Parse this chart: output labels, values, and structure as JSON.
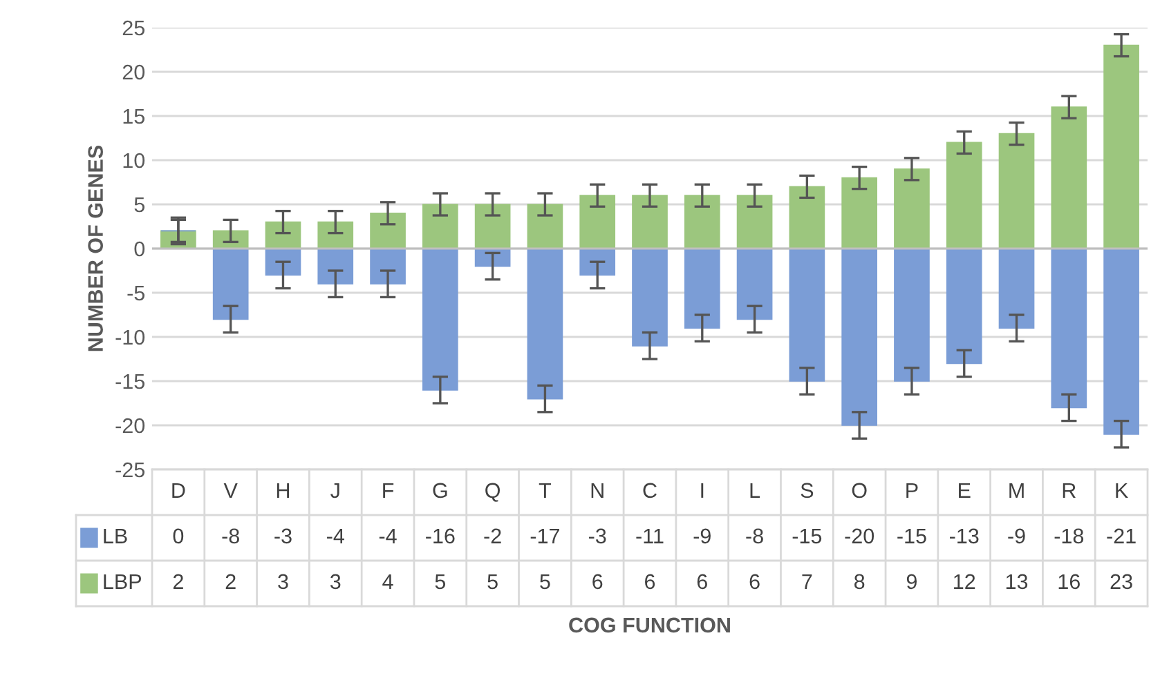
{
  "chart_data": {
    "type": "bar",
    "stacked": true,
    "annotations": [
      "COG FUNCTION"
    ],
    "ylabel": "NUMBER OF GENES",
    "categories": [
      "D",
      "V",
      "H",
      "J",
      "F",
      "G",
      "Q",
      "T",
      "N",
      "C",
      "I",
      "L",
      "S",
      "O",
      "P",
      "E",
      "M",
      "R",
      "K"
    ],
    "series": [
      {
        "name": "LBP",
        "color": "#9cc67e",
        "values": [
          2,
          2,
          3,
          3,
          4,
          5,
          5,
          5,
          6,
          6,
          6,
          6,
          7,
          8,
          9,
          12,
          13,
          16,
          23
        ],
        "errors": [
          1.25,
          1.25,
          1.25,
          1.25,
          1.25,
          1.25,
          1.25,
          1.25,
          1.25,
          1.25,
          1.25,
          1.25,
          1.25,
          1.25,
          1.25,
          1.25,
          1.25,
          1.25,
          1.25
        ]
      },
      {
        "name": "LB",
        "color": "#7b9dd6",
        "values": [
          0,
          -8,
          -3,
          -4,
          -4,
          -16,
          -2,
          -17,
          -3,
          -11,
          -9,
          -8,
          -15,
          -20,
          -15,
          -13,
          -9,
          -18,
          -21
        ],
        "errors": [
          1.5,
          1.5,
          1.5,
          1.5,
          1.5,
          1.5,
          1.5,
          1.5,
          1.5,
          1.5,
          1.5,
          1.5,
          1.5,
          1.5,
          1.5,
          1.5,
          1.5,
          1.5,
          1.5
        ]
      }
    ],
    "ylim": [
      -25,
      25
    ],
    "yticks": [
      -25,
      -20,
      -15,
      -10,
      -5,
      0,
      5,
      10,
      15,
      20,
      25
    ],
    "grid": "y",
    "legend": "bottom",
    "data_labels": true
  }
}
